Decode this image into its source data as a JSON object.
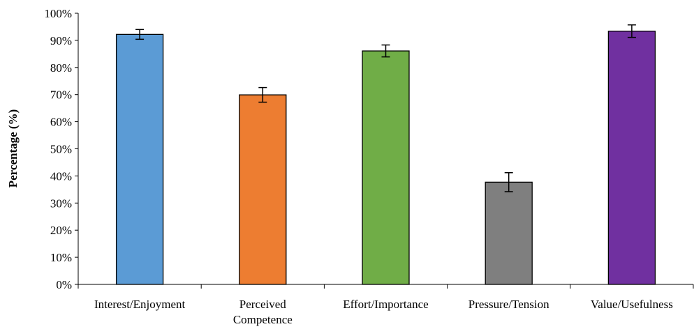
{
  "chart_data": {
    "type": "bar",
    "title": "",
    "xlabel": "",
    "ylabel": "Percentage  (%)",
    "ylim": [
      0,
      100
    ],
    "yticks": [
      0,
      10,
      20,
      30,
      40,
      50,
      60,
      70,
      80,
      90,
      100
    ],
    "ytick_labels": [
      "0%",
      "10%",
      "20%",
      "30%",
      "40%",
      "50%",
      "60%",
      "70%",
      "80%",
      "90%",
      "100%"
    ],
    "grid": false,
    "categories": [
      [
        "Interest/Enjoyment"
      ],
      [
        "Perceived",
        "Competence"
      ],
      [
        "Effort/Importance"
      ],
      [
        "Pressure/Tension"
      ],
      [
        "Value/Usefulness"
      ]
    ],
    "values": [
      92.2,
      69.9,
      86.1,
      37.7,
      93.4
    ],
    "errors": [
      1.8,
      2.7,
      2.2,
      3.5,
      2.3
    ],
    "colors": [
      "#5b9bd5",
      "#ed7d31",
      "#70ad47",
      "#7f7f7f",
      "#7030a0"
    ]
  }
}
